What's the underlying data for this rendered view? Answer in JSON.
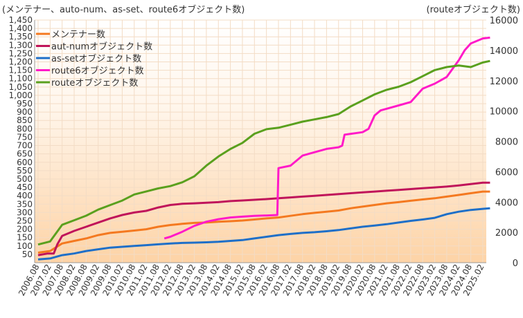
{
  "chart_data": {
    "type": "line",
    "title": "(メンテナー、auto-num、as-set、route6オブジェクト数)",
    "right_axis_label": "(routeオブジェクト数)",
    "x_labels": [
      "2006.08",
      "2007.02",
      "2007.08",
      "2008.02",
      "2008.08",
      "2009.02",
      "2009.08",
      "2010.02",
      "2010.08",
      "2011.02",
      "2011.08",
      "2012.02",
      "2012.08",
      "2013.02",
      "2013.08",
      "2014.02",
      "2014.08",
      "2015.02",
      "2015.08",
      "2016.02",
      "2016.08",
      "2017.02",
      "2017.08",
      "2018.02",
      "2018.08",
      "2019.02",
      "2019.08",
      "2020.02",
      "2020.08",
      "2021.02",
      "2021.08",
      "2022.02",
      "2022.08",
      "2023.02",
      "2023.08",
      "2024.02",
      "2024.08",
      "2025.02"
    ],
    "y_left": {
      "min": 0,
      "max": 1450,
      "step": 50,
      "ticks": [
        "50",
        "100",
        "150",
        "200",
        "250",
        "300",
        "350",
        "400",
        "450",
        "500",
        "550",
        "600",
        "650",
        "700",
        "750",
        "800",
        "850",
        "900",
        "950",
        "1,000",
        "1,050",
        "1,100",
        "1,150",
        "1,200",
        "1,250",
        "1,300",
        "1,350",
        "1,400",
        "1,450"
      ]
    },
    "y_right": {
      "min": 0,
      "max": 16000,
      "step": 2000,
      "ticks": [
        "0",
        "2000",
        "4000",
        "6000",
        "8000",
        "10000",
        "12000",
        "14000",
        "16000"
      ]
    },
    "legend_position": "top-left",
    "series": [
      {
        "name": "メンテナー数",
        "color": "#f47920",
        "axis": "left",
        "points": [
          [
            0,
            60
          ],
          [
            1,
            70
          ],
          [
            2,
            115
          ],
          [
            3,
            130
          ],
          [
            4,
            145
          ],
          [
            5,
            165
          ],
          [
            6,
            178
          ],
          [
            7,
            185
          ],
          [
            8,
            192
          ],
          [
            9,
            200
          ],
          [
            10,
            215
          ],
          [
            11,
            225
          ],
          [
            12,
            232
          ],
          [
            13,
            238
          ],
          [
            14,
            240
          ],
          [
            15,
            245
          ],
          [
            16,
            248
          ],
          [
            17,
            252
          ],
          [
            18,
            258
          ],
          [
            19,
            265
          ],
          [
            20,
            270
          ],
          [
            21,
            280
          ],
          [
            22,
            290
          ],
          [
            23,
            298
          ],
          [
            24,
            305
          ],
          [
            25,
            312
          ],
          [
            26,
            325
          ],
          [
            27,
            335
          ],
          [
            28,
            345
          ],
          [
            29,
            355
          ],
          [
            30,
            362
          ],
          [
            31,
            370
          ],
          [
            32,
            378
          ],
          [
            33,
            385
          ],
          [
            34,
            395
          ],
          [
            35,
            405
          ],
          [
            36,
            415
          ],
          [
            37,
            425
          ],
          [
            37.6,
            425
          ]
        ]
      },
      {
        "name": "aut-numオブジェクト数",
        "color": "#c0145a",
        "axis": "left",
        "points": [
          [
            0,
            45
          ],
          [
            0.8,
            55
          ],
          [
            1.3,
            55
          ],
          [
            1.6,
            110
          ],
          [
            2,
            160
          ],
          [
            3,
            190
          ],
          [
            4,
            215
          ],
          [
            5,
            240
          ],
          [
            6,
            265
          ],
          [
            7,
            285
          ],
          [
            8,
            300
          ],
          [
            9,
            310
          ],
          [
            10,
            330
          ],
          [
            11,
            345
          ],
          [
            12,
            352
          ],
          [
            13,
            355
          ],
          [
            14,
            358
          ],
          [
            15,
            362
          ],
          [
            16,
            368
          ],
          [
            17,
            372
          ],
          [
            18,
            376
          ],
          [
            19,
            380
          ],
          [
            20,
            385
          ],
          [
            21,
            390
          ],
          [
            22,
            395
          ],
          [
            23,
            400
          ],
          [
            24,
            405
          ],
          [
            25,
            410
          ],
          [
            26,
            415
          ],
          [
            27,
            420
          ],
          [
            28,
            425
          ],
          [
            29,
            430
          ],
          [
            30,
            435
          ],
          [
            31,
            440
          ],
          [
            32,
            445
          ],
          [
            33,
            450
          ],
          [
            34,
            455
          ],
          [
            35,
            462
          ],
          [
            36,
            470
          ],
          [
            37,
            478
          ],
          [
            37.6,
            478
          ]
        ]
      },
      {
        "name": "as-setオブジェクト数",
        "color": "#1e6fc8",
        "axis": "left",
        "points": [
          [
            0,
            20
          ],
          [
            1,
            25
          ],
          [
            2,
            45
          ],
          [
            3,
            55
          ],
          [
            4,
            70
          ],
          [
            5,
            80
          ],
          [
            6,
            90
          ],
          [
            7,
            95
          ],
          [
            8,
            100
          ],
          [
            9,
            105
          ],
          [
            10,
            110
          ],
          [
            11,
            115
          ],
          [
            12,
            118
          ],
          [
            13,
            120
          ],
          [
            14,
            122
          ],
          [
            15,
            125
          ],
          [
            16,
            130
          ],
          [
            17,
            135
          ],
          [
            18,
            145
          ],
          [
            19,
            155
          ],
          [
            20,
            165
          ],
          [
            21,
            172
          ],
          [
            22,
            178
          ],
          [
            23,
            182
          ],
          [
            24,
            188
          ],
          [
            25,
            195
          ],
          [
            26,
            205
          ],
          [
            27,
            215
          ],
          [
            28,
            222
          ],
          [
            29,
            230
          ],
          [
            30,
            240
          ],
          [
            31,
            250
          ],
          [
            32,
            258
          ],
          [
            33,
            268
          ],
          [
            34,
            290
          ],
          [
            35,
            305
          ],
          [
            36,
            315
          ],
          [
            37,
            322
          ],
          [
            37.6,
            325
          ]
        ]
      },
      {
        "name": "route6オブジェクト数",
        "color": "#ff1ac8",
        "axis": "left",
        "points": [
          [
            10.5,
            145
          ],
          [
            11,
            155
          ],
          [
            12,
            185
          ],
          [
            13,
            220
          ],
          [
            14,
            245
          ],
          [
            15,
            260
          ],
          [
            16,
            270
          ],
          [
            17,
            275
          ],
          [
            18,
            280
          ],
          [
            19,
            282
          ],
          [
            19.9,
            285
          ],
          [
            20,
            565
          ],
          [
            21,
            580
          ],
          [
            22,
            640
          ],
          [
            23,
            660
          ],
          [
            24,
            680
          ],
          [
            25,
            690
          ],
          [
            25.3,
            700
          ],
          [
            25.5,
            765
          ],
          [
            26,
            770
          ],
          [
            27,
            780
          ],
          [
            27.5,
            800
          ],
          [
            28,
            880
          ],
          [
            28.5,
            910
          ],
          [
            29,
            920
          ],
          [
            30,
            940
          ],
          [
            31,
            960
          ],
          [
            32,
            1040
          ],
          [
            33,
            1070
          ],
          [
            34,
            1110
          ],
          [
            35,
            1210
          ],
          [
            35.5,
            1270
          ],
          [
            36,
            1310
          ],
          [
            37,
            1340
          ],
          [
            37.6,
            1345
          ]
        ]
      },
      {
        "name": "routeオブジェクト数",
        "color": "#5aa01e",
        "axis": "right",
        "points": [
          [
            0,
            1200
          ],
          [
            1,
            1400
          ],
          [
            2,
            2500
          ],
          [
            3,
            2800
          ],
          [
            4,
            3100
          ],
          [
            5,
            3500
          ],
          [
            6,
            3800
          ],
          [
            7,
            4100
          ],
          [
            8,
            4500
          ],
          [
            9,
            4700
          ],
          [
            10,
            4900
          ],
          [
            11,
            5050
          ],
          [
            12,
            5300
          ],
          [
            13,
            5700
          ],
          [
            14,
            6400
          ],
          [
            15,
            7000
          ],
          [
            16,
            7500
          ],
          [
            17,
            7900
          ],
          [
            18,
            8500
          ],
          [
            19,
            8800
          ],
          [
            20,
            8900
          ],
          [
            21,
            9100
          ],
          [
            22,
            9300
          ],
          [
            23,
            9450
          ],
          [
            24,
            9600
          ],
          [
            25,
            9800
          ],
          [
            26,
            10300
          ],
          [
            27,
            10700
          ],
          [
            28,
            11100
          ],
          [
            29,
            11400
          ],
          [
            30,
            11600
          ],
          [
            31,
            11900
          ],
          [
            32,
            12300
          ],
          [
            33,
            12700
          ],
          [
            34,
            12900
          ],
          [
            35,
            13000
          ],
          [
            36,
            12900
          ],
          [
            37,
            13200
          ],
          [
            37.6,
            13300
          ]
        ]
      }
    ]
  }
}
